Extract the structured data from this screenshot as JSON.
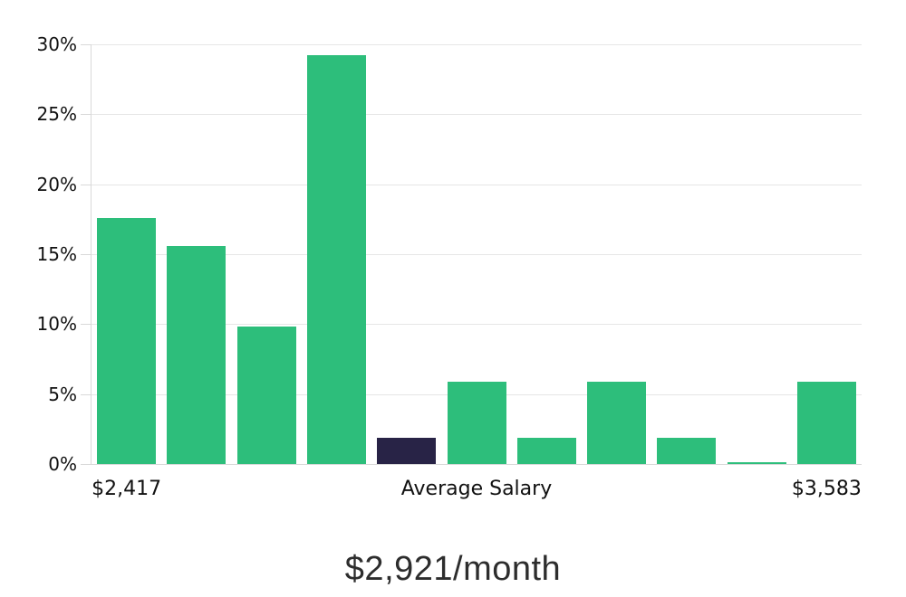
{
  "chart_data": {
    "type": "bar",
    "title": "$2,921/month",
    "xlabel": "",
    "ylabel": "",
    "ylim": [
      0,
      30
    ],
    "grid": "horizontal",
    "legend": "none",
    "y_ticks": [
      {
        "value": 0,
        "label": "0%"
      },
      {
        "value": 5,
        "label": "5%"
      },
      {
        "value": 10,
        "label": "10%"
      },
      {
        "value": 15,
        "label": "15%"
      },
      {
        "value": 20,
        "label": "20%"
      },
      {
        "value": 25,
        "label": "25%"
      },
      {
        "value": 30,
        "label": "30%"
      }
    ],
    "values": [
      17.6,
      15.6,
      9.8,
      29.2,
      1.9,
      5.9,
      1.9,
      5.9,
      1.9,
      0.1,
      5.9
    ],
    "highlight_index": 4,
    "highlight_meaning": "bin containing average salary",
    "x_axis_labels": [
      {
        "text": "$2,417",
        "bar_index": 0
      },
      {
        "text": "Average Salary",
        "bar_index": 5
      },
      {
        "text": "$3,583",
        "bar_index": 10
      }
    ],
    "colors": {
      "bar": "#2dbe7b",
      "highlight": "#282346",
      "gridline": "#e6e6e6",
      "axis": "#d9d9d9",
      "tick_label": "#111111",
      "title": "#2d2d2d"
    }
  }
}
